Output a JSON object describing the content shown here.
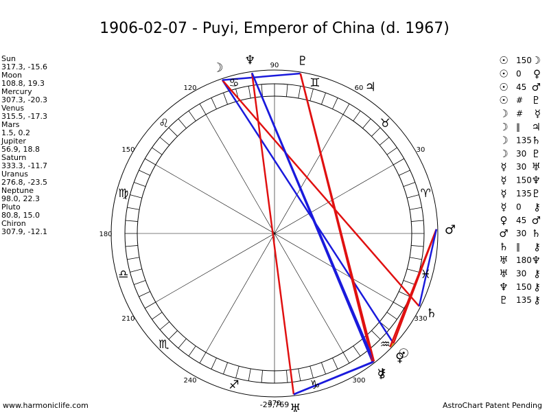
{
  "title": "1906-02-07 - Puyi, Emperor of China (d. 1967)",
  "planets": [
    {
      "name": "Sun",
      "glyph": "☉",
      "coords": "317.3, -15.6"
    },
    {
      "name": "Moon",
      "glyph": "☽",
      "coords": "108.8, 19.3"
    },
    {
      "name": "Mercury",
      "glyph": "☿",
      "coords": "307.3, -20.3"
    },
    {
      "name": "Venus",
      "glyph": "♀",
      "coords": "315.5, -17.3"
    },
    {
      "name": "Mars",
      "glyph": "♂",
      "coords": "1.5, 0.2"
    },
    {
      "name": "Jupiter",
      "glyph": "♃",
      "coords": "56.9, 18.8"
    },
    {
      "name": "Saturn",
      "glyph": "♄",
      "coords": "333.3, -11.7"
    },
    {
      "name": "Uranus",
      "glyph": "♅",
      "coords": "276.8, -23.5"
    },
    {
      "name": "Neptune",
      "glyph": "♆",
      "coords": "98.0, 22.3"
    },
    {
      "name": "Pluto",
      "glyph": "♇",
      "coords": "80.8, 15.0"
    },
    {
      "name": "Chiron",
      "glyph": "⚷",
      "coords": "307.9, -12.1"
    }
  ],
  "degree_labels": [
    {
      "value": 90,
      "label": "90"
    },
    {
      "value": 60,
      "label": "60"
    },
    {
      "value": 30,
      "label": "30"
    },
    {
      "value": 330,
      "label": "330"
    },
    {
      "value": 300,
      "label": "300"
    },
    {
      "value": 270,
      "label": "270"
    },
    {
      "value": 240,
      "label": "240"
    },
    {
      "value": 210,
      "label": "210"
    },
    {
      "value": 180,
      "label": "180"
    },
    {
      "value": 150,
      "label": "150"
    },
    {
      "value": 120,
      "label": "120"
    }
  ],
  "signs": [
    "♈",
    "♉",
    "♊",
    "♋",
    "♌",
    "♍",
    "♎",
    "♏",
    "♐",
    "♑",
    "♒",
    "♓"
  ],
  "aspects": [
    {
      "a": "☉",
      "aspect": "150",
      "b": "☽",
      "color": "#1a1adc"
    },
    {
      "a": "☉",
      "aspect": "0",
      "b": "♀",
      "color": "#d4a017"
    },
    {
      "a": "☉",
      "aspect": "45",
      "b": "♂",
      "color": "#e01010"
    },
    {
      "a": "☉",
      "aspect": "#",
      "b": "♇"
    },
    {
      "a": "☽",
      "aspect": "#",
      "b": "☿"
    },
    {
      "a": "☽",
      "aspect": "‖",
      "b": "♃"
    },
    {
      "a": "☽",
      "aspect": "135",
      "b": "♄",
      "color": "#e01010"
    },
    {
      "a": "☽",
      "aspect": "30",
      "b": "♇",
      "color": "#1a1adc"
    },
    {
      "a": "☿",
      "aspect": "30",
      "b": "♅",
      "color": "#1a1adc"
    },
    {
      "a": "☿",
      "aspect": "150",
      "b": "♆",
      "color": "#1a1adc"
    },
    {
      "a": "☿",
      "aspect": "135",
      "b": "♇",
      "color": "#e01010"
    },
    {
      "a": "☿",
      "aspect": "0",
      "b": "⚷",
      "color": "#d4a017"
    },
    {
      "a": "♀",
      "aspect": "45",
      "b": "♂",
      "color": "#e01010"
    },
    {
      "a": "♂",
      "aspect": "30",
      "b": "♄",
      "color": "#1a1adc"
    },
    {
      "a": "♄",
      "aspect": "‖",
      "b": "⚷"
    },
    {
      "a": "♅",
      "aspect": "180",
      "b": "♆",
      "color": "#e01010"
    },
    {
      "a": "♅",
      "aspect": "30",
      "b": "⚷",
      "color": "#1a1adc"
    },
    {
      "a": "♆",
      "aspect": "150",
      "b": "⚷",
      "color": "#1a1adc"
    },
    {
      "a": "♇",
      "aspect": "135",
      "b": "⚷",
      "color": "#e01010"
    }
  ],
  "bottom_value": "-29,769",
  "footer_left": "www.harmoniclife.com",
  "footer_right": "AstroChart Patent Pending"
}
